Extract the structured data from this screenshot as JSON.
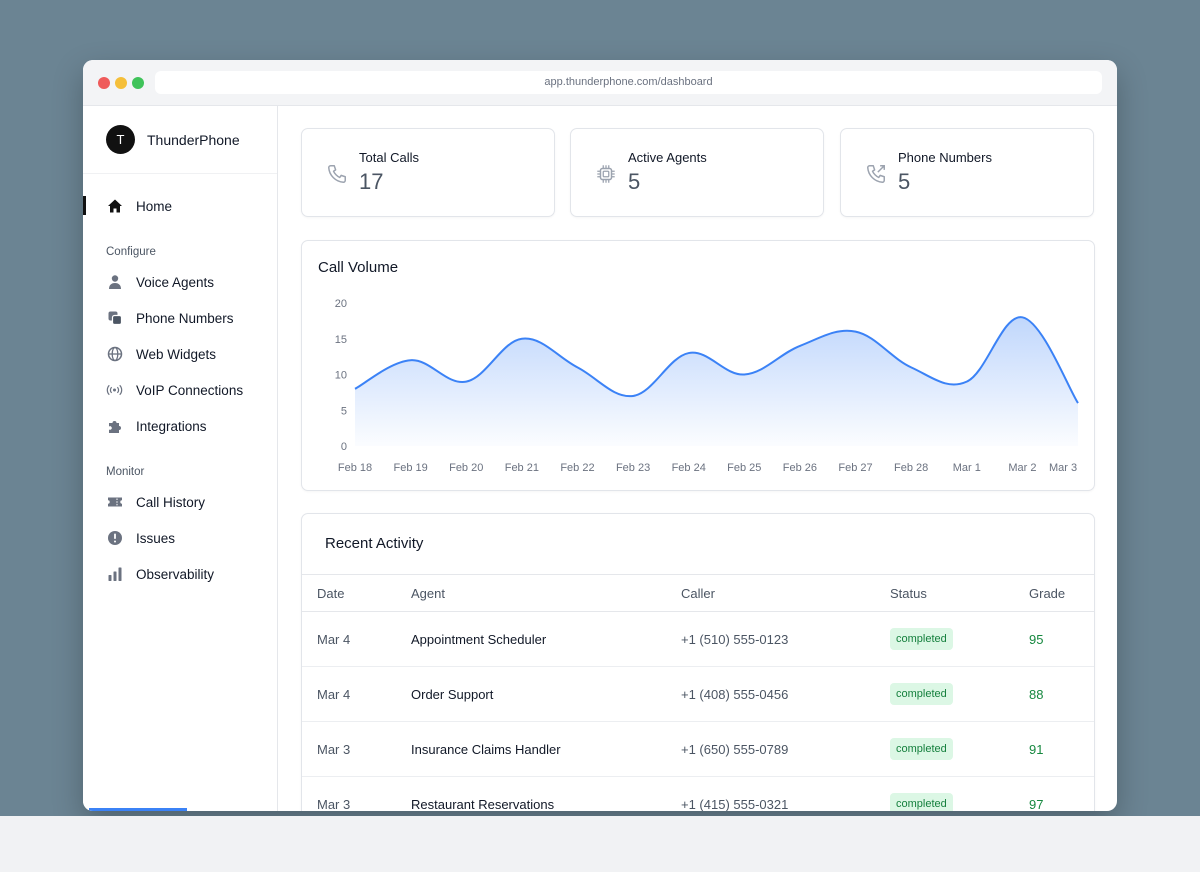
{
  "browser": {
    "url": "app.thunderphone.com/dashboard"
  },
  "brand": {
    "initial": "T",
    "name": "ThunderPhone"
  },
  "sidebar": {
    "home": {
      "label": "Home",
      "icon": "home-icon"
    },
    "configure_label": "Configure",
    "configure": [
      {
        "label": "Voice Agents",
        "icon": "person-icon"
      },
      {
        "label": "Phone Numbers",
        "icon": "copy-icon"
      },
      {
        "label": "Web Widgets",
        "icon": "globe-icon"
      },
      {
        "label": "VoIP Connections",
        "icon": "broadcast-icon"
      },
      {
        "label": "Integrations",
        "icon": "puzzle-icon"
      }
    ],
    "monitor_label": "Monitor",
    "monitor": [
      {
        "label": "Call History",
        "icon": "ticket-icon"
      },
      {
        "label": "Issues",
        "icon": "alert-circle-icon"
      },
      {
        "label": "Observability",
        "icon": "bar-chart-icon"
      }
    ]
  },
  "stats": [
    {
      "label": "Total Calls",
      "value": "17",
      "icon": "phone-icon"
    },
    {
      "label": "Active Agents",
      "value": "5",
      "icon": "chip-icon"
    },
    {
      "label": "Phone Numbers",
      "value": "5",
      "icon": "phone-forward-icon"
    }
  ],
  "chart_data": {
    "type": "area",
    "title": "Call Volume",
    "categories": [
      "Feb 18",
      "Feb 19",
      "Feb 20",
      "Feb 21",
      "Feb 22",
      "Feb 23",
      "Feb 24",
      "Feb 25",
      "Feb 26",
      "Feb 27",
      "Feb 28",
      "Mar 1",
      "Mar 2",
      "Mar 3"
    ],
    "values": [
      8,
      12,
      9,
      15,
      11,
      7,
      13,
      10,
      14,
      16,
      11,
      9,
      18,
      6
    ],
    "ylim": [
      0,
      20
    ],
    "yticks": [
      0,
      5,
      10,
      15,
      20
    ],
    "xlabel": "",
    "ylabel": "",
    "grid": false,
    "color": "#3b82f6"
  },
  "activity": {
    "title": "Recent Activity",
    "columns": [
      "Date",
      "Agent",
      "Caller",
      "Status",
      "Grade"
    ],
    "rows": [
      {
        "date": "Mar 4",
        "agent": "Appointment Scheduler",
        "caller": "+1 (510) 555-0123",
        "status": "completed",
        "grade": "95"
      },
      {
        "date": "Mar 4",
        "agent": "Order Support",
        "caller": "+1 (408) 555-0456",
        "status": "completed",
        "grade": "88"
      },
      {
        "date": "Mar 3",
        "agent": "Insurance Claims Handler",
        "caller": "+1 (650) 555-0789",
        "status": "completed",
        "grade": "91"
      },
      {
        "date": "Mar 3",
        "agent": "Restaurant Reservations",
        "caller": "+1 (415) 555-0321",
        "status": "completed",
        "grade": "97"
      }
    ]
  }
}
